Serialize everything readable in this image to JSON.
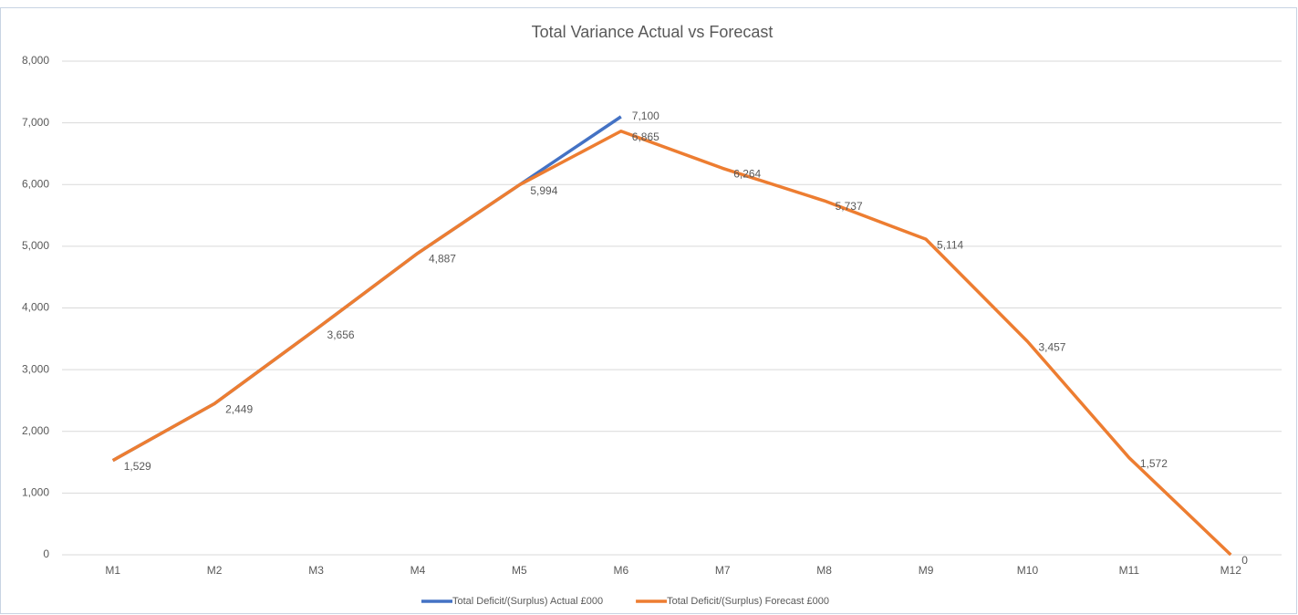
{
  "chart_data": {
    "type": "line",
    "title": "Total Variance Actual vs Forecast",
    "categories": [
      "M1",
      "M2",
      "M3",
      "M4",
      "M5",
      "M6",
      "M7",
      "M8",
      "M9",
      "M10",
      "M11",
      "M12"
    ],
    "series": [
      {
        "name": "Total Deficit/(Surplus) Actual £000",
        "color": "#4472c4",
        "values": [
          1529,
          2449,
          3656,
          4887,
          5994,
          7100,
          null,
          null,
          null,
          null,
          null,
          null
        ],
        "value_labels": [
          null,
          null,
          null,
          null,
          null,
          "7,100",
          null,
          null,
          null,
          null,
          null,
          null
        ]
      },
      {
        "name": "Total Deficit/(Surplus) Forecast £000",
        "color": "#ed7d31",
        "values": [
          1529,
          2449,
          3656,
          4887,
          5994,
          6865,
          6264,
          5737,
          5114,
          3457,
          1572,
          0
        ],
        "value_labels": [
          "1,529",
          "2,449",
          "3,656",
          "4,887",
          "5,994",
          "6,865",
          "6,264",
          "5,737",
          "5,114",
          "3,457",
          "1,572",
          "0"
        ]
      }
    ],
    "ylim": [
      0,
      8000
    ],
    "yticks": [
      0,
      {
        "value": 1000,
        "label": "1,000"
      },
      {
        "value": 2000,
        "label": "2,000"
      },
      {
        "value": 3000,
        "label": "3,000"
      },
      {
        "value": 4000,
        "label": "4,000"
      },
      {
        "value": 5000,
        "label": "5,000"
      },
      {
        "value": 6000,
        "label": "6,000"
      },
      {
        "value": 7000,
        "label": "7,000"
      },
      {
        "value": 8000,
        "label": "8,000"
      }
    ],
    "grid": true,
    "legend": "bottom"
  }
}
